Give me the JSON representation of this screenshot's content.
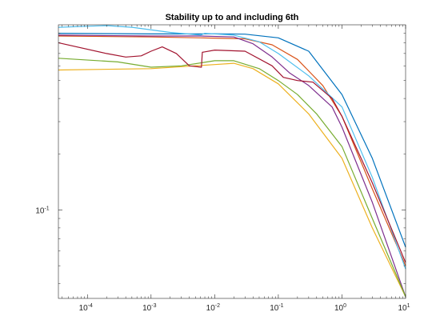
{
  "chart_data": {
    "type": "line",
    "title": "Stability up to and including 6th",
    "xlabel": "",
    "ylabel": "",
    "xscale": "log",
    "yscale": "log",
    "xlim": [
      3.5e-05,
      10
    ],
    "ylim": [
      0.0333,
      1.0
    ],
    "grid": false,
    "legend": "none",
    "x_ticks": [
      {
        "value": 0.0001,
        "base": "10",
        "exp": "-4"
      },
      {
        "value": 0.001,
        "base": "10",
        "exp": "-3"
      },
      {
        "value": 0.01,
        "base": "10",
        "exp": "-2"
      },
      {
        "value": 0.1,
        "base": "10",
        "exp": "-1"
      },
      {
        "value": 1,
        "base": "10",
        "exp": "0"
      },
      {
        "value": 10,
        "base": "10",
        "exp": "1"
      }
    ],
    "y_ticks": [
      {
        "value": 0.1,
        "base": "10",
        "exp": "-1"
      }
    ],
    "series": [
      {
        "color": "#0072BD",
        "points": [
          [
            3.5e-05,
            0.9
          ],
          [
            0.001,
            0.893
          ],
          [
            0.005,
            0.893
          ],
          [
            0.01,
            0.895
          ],
          [
            0.03,
            0.89
          ],
          [
            0.1,
            0.85
          ],
          [
            0.3,
            0.72
          ],
          [
            1,
            0.42
          ],
          [
            3,
            0.19
          ],
          [
            10,
            0.063
          ]
        ]
      },
      {
        "color": "#D95319",
        "points": [
          [
            3.5e-05,
            0.87
          ],
          [
            0.001,
            0.86
          ],
          [
            0.006,
            0.85
          ],
          [
            0.03,
            0.84
          ],
          [
            0.08,
            0.78
          ],
          [
            0.2,
            0.65
          ],
          [
            0.5,
            0.47
          ],
          [
            1,
            0.32
          ],
          [
            3,
            0.13
          ],
          [
            10,
            0.05
          ]
        ]
      },
      {
        "color": "#EDB120",
        "points": [
          [
            3.5e-05,
            0.57
          ],
          [
            0.001,
            0.58
          ],
          [
            0.01,
            0.61
          ],
          [
            0.02,
            0.62
          ],
          [
            0.04,
            0.58
          ],
          [
            0.1,
            0.48
          ],
          [
            0.3,
            0.33
          ],
          [
            1,
            0.19
          ],
          [
            3,
            0.08
          ],
          [
            10,
            0.034
          ]
        ]
      },
      {
        "color": "#7E2F8E",
        "points": [
          [
            3.5e-05,
            0.88
          ],
          [
            0.001,
            0.87
          ],
          [
            0.006,
            0.87
          ],
          [
            0.02,
            0.86
          ],
          [
            0.04,
            0.79
          ],
          [
            0.08,
            0.67
          ],
          [
            0.15,
            0.55
          ],
          [
            0.3,
            0.47
          ],
          [
            0.7,
            0.36
          ],
          [
            1,
            0.28
          ],
          [
            3,
            0.11
          ],
          [
            10,
            0.034
          ]
        ]
      },
      {
        "color": "#77AC30",
        "points": [
          [
            3.5e-05,
            0.66
          ],
          [
            0.0003,
            0.63
          ],
          [
            0.001,
            0.59
          ],
          [
            0.003,
            0.6
          ],
          [
            0.01,
            0.64
          ],
          [
            0.02,
            0.64
          ],
          [
            0.05,
            0.58
          ],
          [
            0.1,
            0.5
          ],
          [
            0.2,
            0.42
          ],
          [
            0.4,
            0.33
          ],
          [
            1,
            0.22
          ],
          [
            3,
            0.09
          ],
          [
            10,
            0.034
          ]
        ]
      },
      {
        "color": "#4DBEEE",
        "points": [
          [
            3.5e-05,
            0.97
          ],
          [
            0.0002,
            0.99
          ],
          [
            0.0005,
            0.97
          ],
          [
            0.002,
            0.91
          ],
          [
            0.006,
            0.88
          ],
          [
            0.007,
            0.9
          ],
          [
            0.02,
            0.88
          ],
          [
            0.05,
            0.81
          ],
          [
            0.1,
            0.7
          ],
          [
            0.3,
            0.53
          ],
          [
            1,
            0.36
          ],
          [
            3,
            0.15
          ],
          [
            10,
            0.048
          ]
        ]
      },
      {
        "color": "#A2142F",
        "points": [
          [
            3.5e-05,
            0.8
          ],
          [
            0.0002,
            0.7
          ],
          [
            0.0004,
            0.67
          ],
          [
            0.0007,
            0.68
          ],
          [
            0.001,
            0.72
          ],
          [
            0.0015,
            0.76
          ],
          [
            0.0025,
            0.7
          ],
          [
            0.004,
            0.6
          ],
          [
            0.0062,
            0.59
          ],
          [
            0.0064,
            0.71
          ],
          [
            0.01,
            0.73
          ],
          [
            0.03,
            0.72
          ],
          [
            0.08,
            0.6
          ],
          [
            0.12,
            0.52
          ],
          [
            0.2,
            0.5
          ],
          [
            0.35,
            0.49
          ],
          [
            0.7,
            0.4
          ],
          [
            1,
            0.32
          ],
          [
            3,
            0.14
          ],
          [
            10,
            0.052
          ]
        ]
      }
    ]
  }
}
